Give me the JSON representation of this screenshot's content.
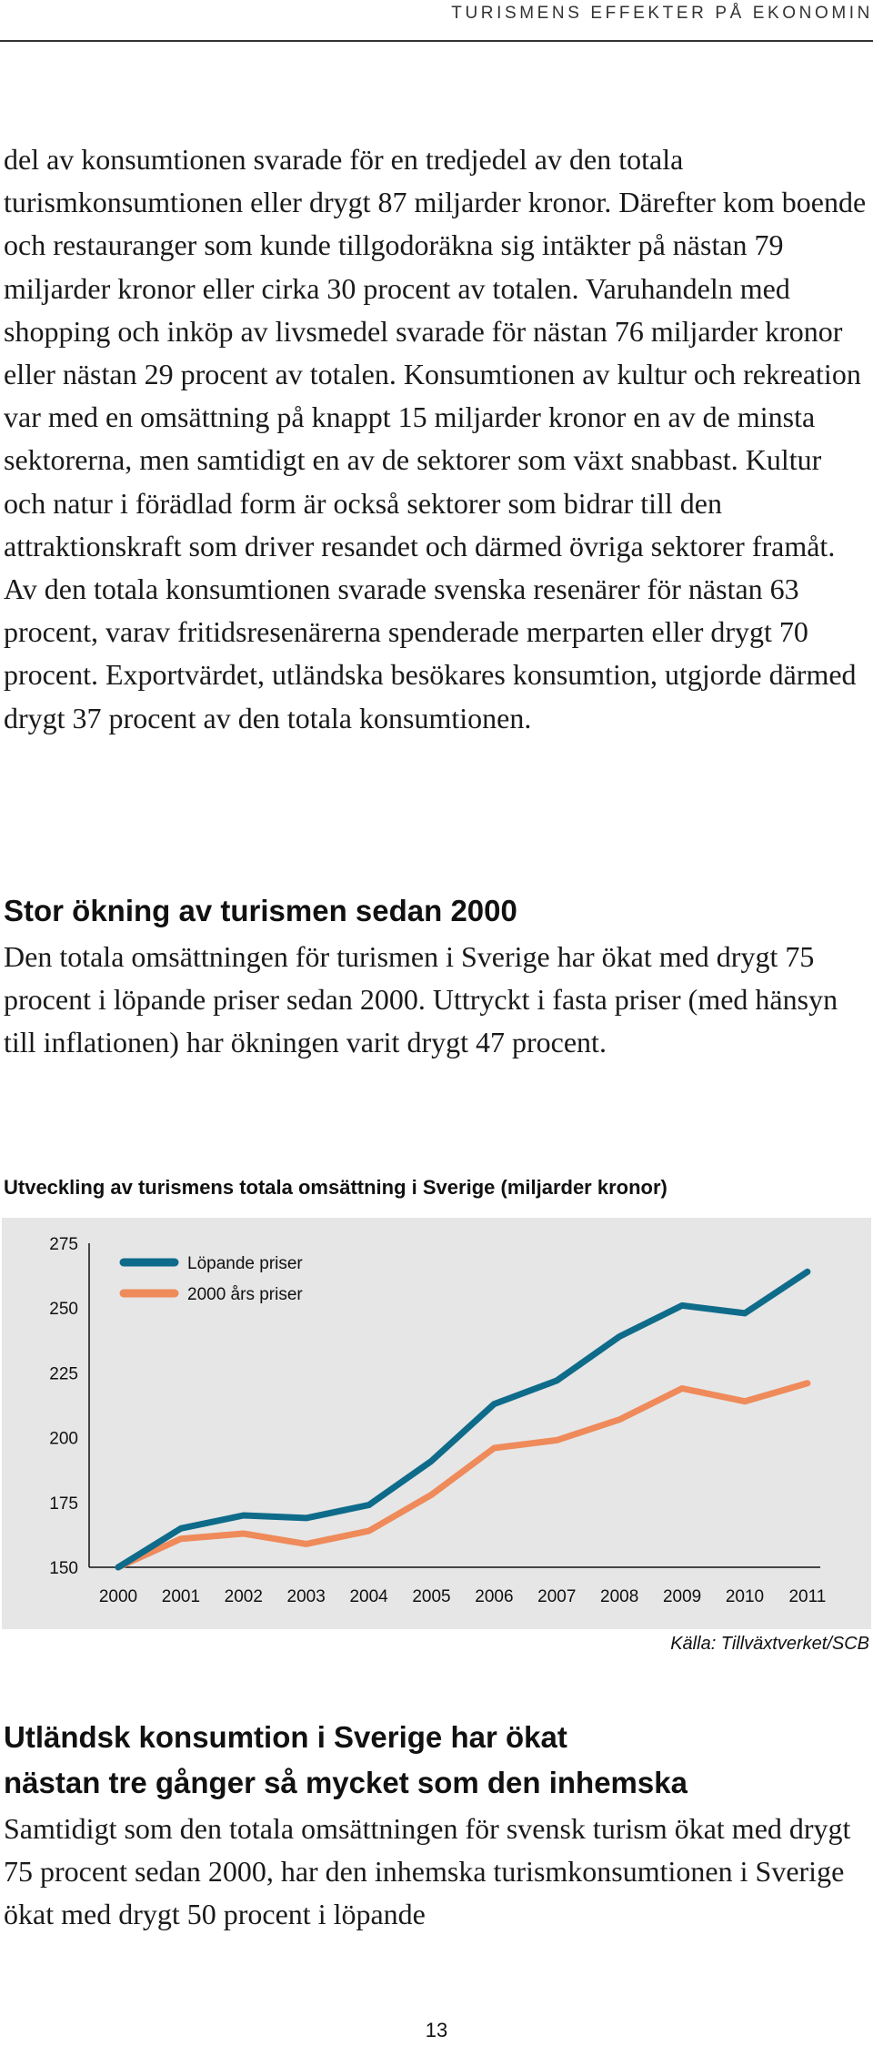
{
  "header": {
    "running_title": "TURISMENS EFFEKTER PÅ EKONOMIN"
  },
  "paragraphs": {
    "intro": "del av konsumtionen svarade för en tredjedel av den totala turismkonsumtionen eller drygt 87 miljarder kronor. Därefter kom boende och restauranger som kunde tillgodoräkna sig intäkter på nästan 79 miljarder kronor eller cirka 30 procent av totalen. Varuhandeln med shopping och inköp av livsmedel svarade för nästan 76 miljarder kronor eller nästan 29 procent av totalen. Konsumtionen av kultur och rekreation var med en omsättning på knappt 15 miljarder kronor en av de minsta sektorerna, men samtidigt en av de sektorer som växt snabbast. Kultur och natur i förädlad form är också sektorer som bidrar till den attraktionskraft som driver resandet och därmed övriga sektorer framåt. Av den totala konsumtionen svarade svenska resenärer för nästan 63 procent, varav fritidsresenärerna spenderade merparten eller drygt 70 procent. Exportvärdet, utländska besökares konsumtion, utgjorde därmed drygt 37 procent av den totala konsumtionen.",
    "growth": "Den totala omsättningen för turismen i Sverige har ökat med drygt 75 procent i löpande priser sedan 2000. Uttryckt i fasta priser (med hänsyn till inflationen) har ökningen varit drygt 47 procent.",
    "foreign": "Samtidigt som den totala omsättningen för svensk turism ökat med drygt 75 procent sedan 2000, har den inhemska turismkonsumtionen i Sverige ökat med drygt 50 procent i löpande"
  },
  "headings": {
    "growth": "Stor ökning av turismen sedan 2000",
    "foreign_line1": "Utländsk konsumtion i Sverige har ökat",
    "foreign_line2": "nästan tre gånger så mycket som den inhemska"
  },
  "chart_data": {
    "type": "line",
    "title": "Utveckling av turismens totala omsättning i Sverige (miljarder kronor)",
    "categories": [
      "2000",
      "2001",
      "2002",
      "2003",
      "2004",
      "2005",
      "2006",
      "2007",
      "2008",
      "2009",
      "2010",
      "2011"
    ],
    "series": [
      {
        "name": "Löpande priser",
        "color": "#0f6b8a",
        "values": [
          150,
          165,
          170,
          169,
          174,
          191,
          213,
          222,
          239,
          251,
          248,
          264
        ]
      },
      {
        "name": "2000 års priser",
        "color": "#ef8a5a",
        "values": [
          150,
          161,
          163,
          159,
          164,
          178,
          196,
          199,
          207,
          219,
          214,
          221
        ]
      }
    ],
    "ylim": [
      150,
      275
    ],
    "yticks": [
      "150",
      "175",
      "200",
      "225",
      "250",
      "275"
    ],
    "grid": false,
    "legend": "top-left",
    "source": "Källa: Tillväxtverket/SCB"
  },
  "footer": {
    "page_number": "13"
  }
}
